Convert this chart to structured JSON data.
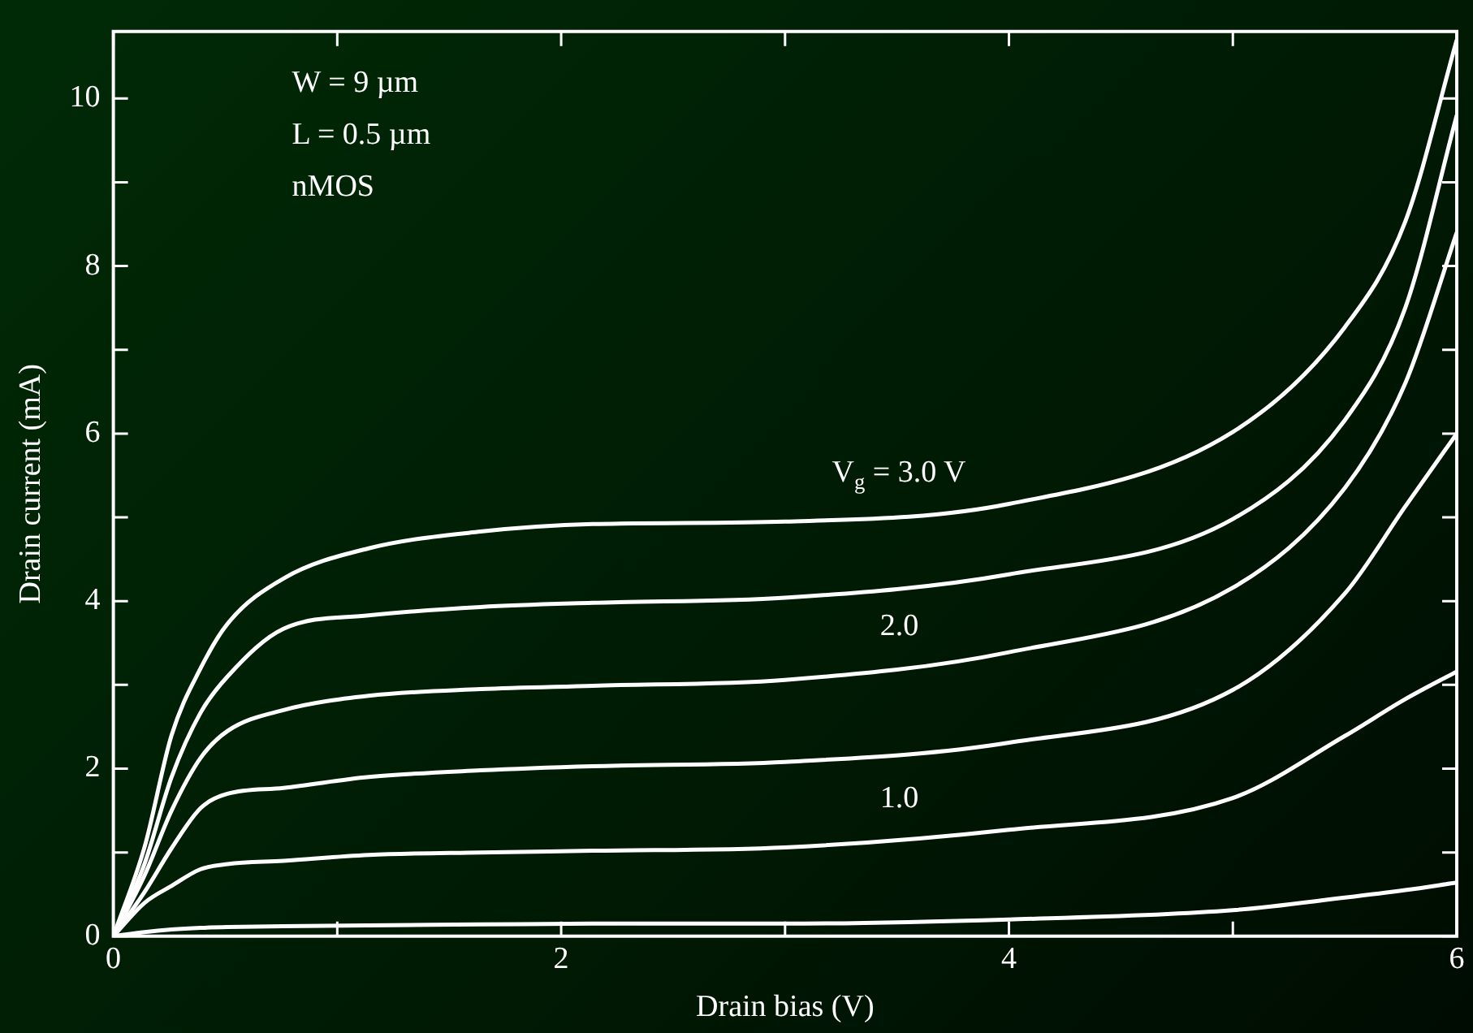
{
  "chart_data": {
    "type": "line",
    "xlabel": "Drain bias (V)",
    "ylabel": "Drain current (mA)",
    "x": [
      0,
      0.14,
      0.26,
      0.39,
      0.51,
      0.76,
      1.14,
      1.64,
      2.14,
      3.0,
      4.0,
      5.0,
      5.5,
      5.77,
      6.0
    ],
    "series": [
      {
        "color": "#ffffff",
        "values": [
          0,
          0.05,
          0.08,
          0.1,
          0.11,
          0.12,
          0.13,
          0.14,
          0.15,
          0.15,
          0.2,
          0.31,
          0.46,
          0.55,
          0.64
        ]
      },
      {
        "name": "1.0",
        "color": "#ffffff",
        "values": [
          0,
          0.4,
          0.6,
          0.8,
          0.86,
          0.9,
          0.97,
          1.0,
          1.02,
          1.06,
          1.27,
          1.65,
          2.39,
          2.83,
          3.16
        ]
      },
      {
        "color": "#ffffff",
        "values": [
          0,
          0.53,
          1.05,
          1.53,
          1.7,
          1.77,
          1.9,
          1.98,
          2.03,
          2.08,
          2.31,
          2.94,
          4.09,
          5.13,
          6.0
        ]
      },
      {
        "name": "2.0",
        "color": "#ffffff",
        "values": [
          0,
          0.73,
          1.5,
          2.13,
          2.45,
          2.7,
          2.87,
          2.95,
          2.99,
          3.06,
          3.39,
          4.16,
          5.35,
          6.6,
          8.4
        ]
      },
      {
        "color": "#ffffff",
        "values": [
          0,
          0.87,
          1.9,
          2.67,
          3.1,
          3.67,
          3.83,
          3.93,
          3.98,
          4.04,
          4.32,
          4.98,
          6.16,
          7.5,
          9.8
        ]
      },
      {
        "name": "V$_{g}$ = 3.0 V",
        "color": "#ffffff",
        "values": [
          0,
          1.07,
          2.4,
          3.2,
          3.73,
          4.27,
          4.63,
          4.83,
          4.92,
          4.95,
          5.16,
          6.02,
          7.27,
          8.53,
          10.7
        ]
      }
    ],
    "xlim": [
      0,
      6
    ],
    "xticks": [
      0,
      {
        "value": 1,
        "label": null
      },
      2,
      {
        "value": 3,
        "label": null
      },
      4,
      {
        "value": 5,
        "label": null
      },
      6
    ],
    "ylim": [
      0,
      10.8
    ],
    "yticks": [
      0,
      {
        "value": 1,
        "label": null
      },
      2,
      {
        "value": 3,
        "label": null
      },
      4,
      {
        "value": 5,
        "label": null
      },
      6,
      {
        "value": 7,
        "label": null
      },
      8,
      {
        "value": 9,
        "label": null
      },
      10
    ],
    "grid": false,
    "legend": false,
    "marker": "none",
    "line_style": "solid",
    "annotations": [
      "W = 9 µm",
      "L = 0.5 µm",
      "nMOS"
    ]
  }
}
